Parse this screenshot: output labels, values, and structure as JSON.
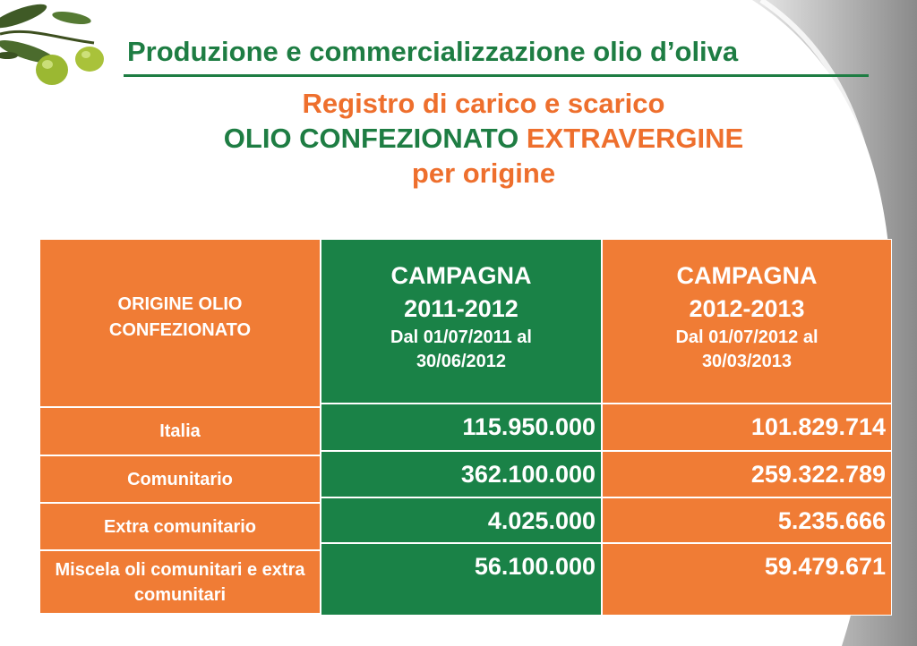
{
  "header": {
    "title": "Produzione e commercializzazione olio d’oliva",
    "subtitle_line1": "Registro di carico e scarico",
    "subtitle_line2_green": "OLIO CONFEZIONATO",
    "subtitle_line2_orange": "EXTRAVERGINE",
    "subtitle_line3": "per origine"
  },
  "table": {
    "origin_header": [
      "ORIGINE OLIO",
      "CONFEZIONATO"
    ],
    "campaigns": [
      {
        "title": "CAMPAGNA",
        "years": "2011-2012",
        "period_line1": "Dal 01/07/2011 al",
        "period_line2": "30/06/2012"
      },
      {
        "title": "CAMPAGNA",
        "years": "2012-2013",
        "period_line1": "Dal 01/07/2012 al",
        "period_line2": "30/03/2013"
      }
    ],
    "rows": [
      {
        "label": "Italia",
        "v2011": "115.950.000",
        "v2012": "101.829.714"
      },
      {
        "label": "Comunitario",
        "v2011": "362.100.000",
        "v2012": "259.322.789"
      },
      {
        "label": "Extra comunitario",
        "v2011": "4.025.000",
        "v2012": "5.235.666"
      },
      {
        "label": "Miscela oli comunitari e extra comunitari",
        "v2011": "56.100.000",
        "v2012": "59.479.671"
      }
    ]
  },
  "colors": {
    "green": "#1a8247",
    "orange": "#f07c35",
    "title_green": "#1e7d43",
    "title_orange": "#ee6f2d"
  },
  "icons": {
    "logo": "olive-branch-icon"
  }
}
